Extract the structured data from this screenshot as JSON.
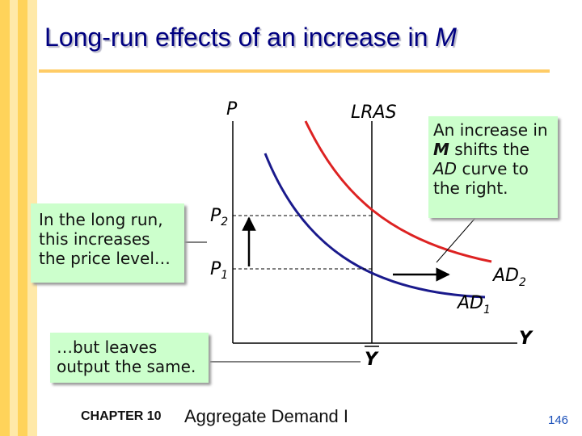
{
  "title_prefix": "Long-run effects of an increase in ",
  "title_symbol": "M",
  "footer": {
    "chapter": "CHAPTER 10",
    "book": "Aggregate Demand I",
    "page": "146"
  },
  "graph": {
    "p_axis": "P",
    "y_axis": "Y",
    "lras": "LRAS",
    "p1": "P",
    "p1_sub": "1",
    "p2": "P",
    "p2_sub": "2",
    "ybar": "Y",
    "ad1": "AD",
    "ad1_sub": "1",
    "ad2": "AD",
    "ad2_sub": "2"
  },
  "callouts": {
    "right_line1": "An increase in",
    "right_m": "M",
    "right_line2_rest": " shifts the",
    "right_ad": "AD",
    "right_line3_rest": " curve to",
    "right_line4": "the right.",
    "left_line1": "In the long run,",
    "left_line2": "this increases",
    "left_line3": "the price level…",
    "bottom_line1": "…but leaves",
    "bottom_line2": "output the same."
  },
  "colors": {
    "title": "#000080",
    "rule": "#ffcc66",
    "callout_bg": "#ccffcc",
    "ad1_curve": "#1a1a8c",
    "ad2_curve": "#dd2222",
    "page_number": "#1a4fb8"
  }
}
